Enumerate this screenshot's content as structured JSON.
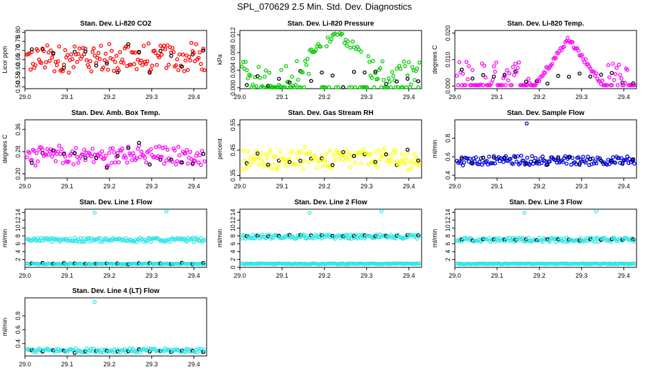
{
  "figure_title": "SPL_070629  2.5 Min. Std. Dev. Diagnostics",
  "chart_data": [
    {
      "id": "co2",
      "type": "scatter",
      "title": "Stan. Dev. Li-820 CO2",
      "ylabel": "Licor ppm",
      "xlim": [
        29.0,
        29.43
      ],
      "ylim": [
        0.49,
        0.81
      ],
      "xticks": [
        29.0,
        29.1,
        29.2,
        29.3,
        29.4
      ],
      "yticks": [
        "0.50",
        "0.55",
        "0.60",
        "0.65",
        "0.70",
        "0.75",
        "0.80"
      ],
      "color": "#ff0000",
      "pattern": "scatter",
      "center": 0.655,
      "spread": 0.12
    },
    {
      "id": "pressure",
      "type": "scatter",
      "title": "Stan. Dev. Li-820 Pressure",
      "ylabel": "kPa",
      "xlim": [
        29.0,
        29.43
      ],
      "ylim": [
        -0.0002,
        0.013
      ],
      "xticks": [
        29.0,
        29.1,
        29.2,
        29.3,
        29.4
      ],
      "yticks": [
        "0.000",
        "0.004",
        "0.008",
        "0.012"
      ],
      "color": "#00cc00",
      "pattern": "pressure"
    },
    {
      "id": "temp",
      "type": "scatter",
      "title": "Stan. Dev. Li-820 Temp.",
      "ylabel": "degrees C",
      "xlim": [
        29.0,
        29.43
      ],
      "ylim": [
        -0.001,
        0.021
      ],
      "xticks": [
        29.0,
        29.1,
        29.2,
        29.3,
        29.4
      ],
      "yticks": [
        "0.000",
        "0.010",
        "0.020"
      ],
      "color": "#ff00ff",
      "pattern": "temp"
    },
    {
      "id": "amb",
      "type": "scatter",
      "title": "Stan. Dev. Amb. Box Temp.",
      "ylabel": "degrees C",
      "xlim": [
        29.0,
        29.43
      ],
      "ylim": [
        0.185,
        0.395
      ],
      "xticks": [
        29.0,
        29.1,
        29.2,
        29.3,
        29.4
      ],
      "yticks": [
        "0.20",
        "0.28",
        "0.36"
      ],
      "color": "#ff00ff",
      "pattern": "scatter",
      "center": 0.265,
      "spread": 0.05
    },
    {
      "id": "rh",
      "type": "scatter",
      "title": "Stan. Dev. Gas Stream RH",
      "ylabel": "percent",
      "xlim": [
        29.0,
        29.43
      ],
      "ylim": [
        0.34,
        0.57
      ],
      "xticks": [
        29.0,
        29.1,
        29.2,
        29.3,
        29.4
      ],
      "yticks": [
        "0.35",
        "0.45",
        "0.55"
      ],
      "color": "#ffff00",
      "pattern": "scatter",
      "center": 0.415,
      "spread": 0.06
    },
    {
      "id": "sample",
      "type": "scatter",
      "title": "Stan. Dev. Sample Flow",
      "ylabel": "ml/min",
      "xlim": [
        29.0,
        29.43
      ],
      "ylim": [
        0.37,
        1.0
      ],
      "xticks": [
        29.0,
        29.1,
        29.2,
        29.3,
        29.4
      ],
      "yticks": [
        "0.4",
        "0.6",
        "0.8"
      ],
      "color": "#0000dd",
      "pattern": "scatter",
      "center": 0.56,
      "spread": 0.07
    },
    {
      "id": "line1",
      "type": "scatter",
      "title": "Stan. Dev. Line 1 Flow",
      "ylabel": "ml/min",
      "xlim": [
        29.0,
        29.43
      ],
      "ylim": [
        0.0,
        14.8
      ],
      "xticks": [
        29.0,
        29.1,
        29.2,
        29.3,
        29.4
      ],
      "yticks": [
        "2",
        "4",
        "6",
        "8",
        "10",
        "12",
        "14"
      ],
      "color": "#33e6e6",
      "pattern": "band",
      "band": 7.0,
      "low": 0.9,
      "blackAt": 0.95
    },
    {
      "id": "line2",
      "type": "scatter",
      "title": "Stan. Dev. Line 2 Flow",
      "ylabel": "ml/min",
      "xlim": [
        29.0,
        29.43
      ],
      "ylim": [
        0.0,
        14.8
      ],
      "xticks": [
        29.0,
        29.1,
        29.2,
        29.3,
        29.4
      ],
      "yticks": [
        "0",
        "2",
        "4",
        "6",
        "8",
        "10",
        "12",
        "14"
      ],
      "color": "#33e6e6",
      "pattern": "band",
      "band": 7.8,
      "low": 0.9,
      "blackAt": 8.1
    },
    {
      "id": "line3",
      "type": "scatter",
      "title": "Stan. Dev. Line 3 Flow",
      "ylabel": "ml/min",
      "xlim": [
        29.0,
        29.43
      ],
      "ylim": [
        0.0,
        14.8
      ],
      "xticks": [
        29.0,
        29.1,
        29.2,
        29.3,
        29.4
      ],
      "yticks": [
        "2",
        "4",
        "6",
        "8",
        "10",
        "12",
        "14"
      ],
      "color": "#33e6e6",
      "pattern": "band",
      "band": 7.0,
      "low": 0.9,
      "blackAt": 7.0
    },
    {
      "id": "line4",
      "type": "scatter",
      "title": "Stan. Dev. Line 4 (LT) Flow",
      "ylabel": "ml/min",
      "xlim": [
        29.0,
        29.43
      ],
      "ylim": [
        0.22,
        1.06
      ],
      "xticks": [
        29.0,
        29.1,
        29.2,
        29.3,
        29.4
      ],
      "yticks": [
        "0.4",
        "0.6",
        "0.8"
      ],
      "color": "#33e6e6",
      "pattern": "flat",
      "center": 0.3,
      "spread": 0.03
    }
  ]
}
